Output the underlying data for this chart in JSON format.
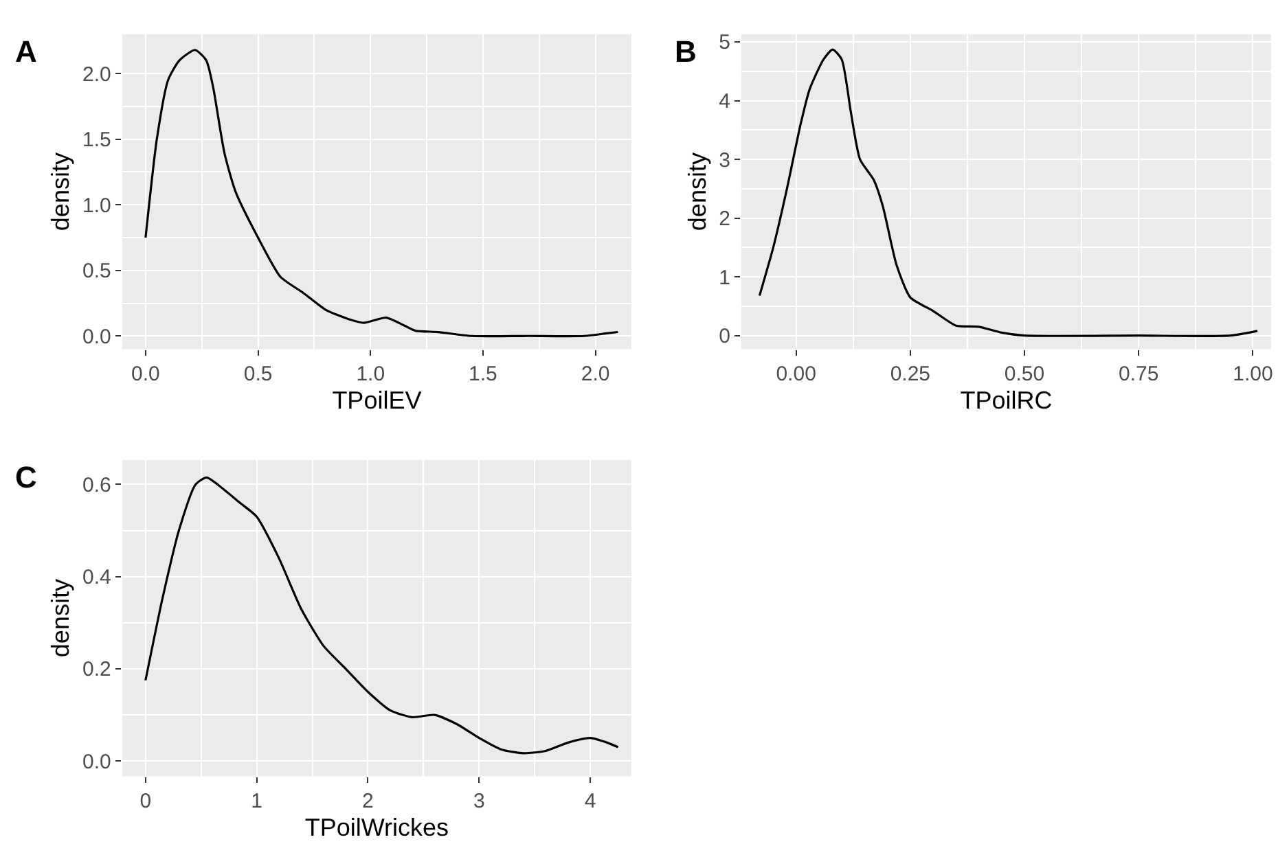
{
  "chart_data": [
    {
      "type": "line",
      "title": "A",
      "xlabel": "TPoilEV",
      "ylabel": "density",
      "xlim": [
        -0.104,
        2.16
      ],
      "ylim": [
        -0.1,
        2.3
      ],
      "xticks": [
        {
          "value": 0,
          "label": "0.0"
        },
        0.5,
        {
          "value": 1,
          "label": "1.0"
        },
        1.5,
        {
          "value": 2,
          "label": "2.0"
        }
      ],
      "yticks": [
        {
          "value": 0,
          "label": "0.0"
        },
        0.5,
        {
          "value": 1,
          "label": "1.0"
        },
        1.5,
        {
          "value": 2,
          "label": "2.0"
        }
      ],
      "grid": true,
      "marker": "none",
      "line_style": "solid",
      "x": [
        0,
        0.05,
        0.1,
        0.15,
        0.22,
        0.27,
        0.3,
        0.35,
        0.4,
        0.5,
        0.6,
        0.7,
        0.8,
        0.9,
        0.97,
        1.07,
        1.15,
        1.2,
        1.3,
        1.45,
        1.7,
        1.95,
        2.05,
        2.1
      ],
      "series": [
        {
          "color": "#000000",
          "values": [
            0.75,
            1.5,
            1.95,
            2.1,
            2.18,
            2.1,
            1.9,
            1.4,
            1.1,
            0.75,
            0.45,
            0.33,
            0.2,
            0.13,
            0.1,
            0.14,
            0.08,
            0.04,
            0.03,
            0.0,
            0.0,
            0.0,
            0.02,
            0.03
          ]
        }
      ]
    },
    {
      "type": "line",
      "title": "B",
      "xlabel": "TPoilRC",
      "ylabel": "density",
      "xlim": [
        -0.12,
        1.04
      ],
      "ylim": [
        -0.23,
        5.13
      ],
      "xticks": [
        {
          "value": 0,
          "label": "0.00"
        },
        0.25,
        {
          "value": 0.5,
          "label": "0.50"
        },
        0.75,
        {
          "value": 1,
          "label": "1.00"
        }
      ],
      "yticks": [
        0,
        1,
        2,
        3,
        4,
        5
      ],
      "grid": true,
      "marker": "none",
      "line_style": "solid",
      "x": [
        -0.08,
        -0.05,
        -0.02,
        0.01,
        0.03,
        0.06,
        0.08,
        0.1,
        0.12,
        0.14,
        0.17,
        0.19,
        0.22,
        0.25,
        0.3,
        0.35,
        0.4,
        0.45,
        0.5,
        0.75,
        0.95,
        1.01
      ],
      "series": [
        {
          "color": "#000000",
          "values": [
            0.68,
            1.5,
            2.5,
            3.6,
            4.2,
            4.7,
            4.87,
            4.7,
            3.8,
            3.0,
            2.65,
            2.2,
            1.2,
            0.65,
            0.42,
            0.17,
            0.15,
            0.05,
            0,
            0,
            0,
            0.08
          ]
        }
      ]
    },
    {
      "type": "line",
      "title": "C",
      "xlabel": "TPoilWrickes",
      "ylabel": "density",
      "xlim": [
        -0.21,
        4.37
      ],
      "ylim": [
        -0.033,
        0.653
      ],
      "xticks": [
        0,
        1,
        2,
        3,
        4
      ],
      "yticks": [
        {
          "value": 0,
          "label": "0.0"
        },
        0.2,
        0.4,
        0.6
      ],
      "grid": true,
      "marker": "none",
      "line_style": "solid",
      "x": [
        0,
        0.15,
        0.3,
        0.45,
        0.55,
        0.7,
        0.85,
        1.0,
        1.2,
        1.4,
        1.6,
        1.8,
        2.0,
        2.2,
        2.4,
        2.6,
        2.8,
        3.0,
        3.2,
        3.4,
        3.6,
        3.8,
        4.0,
        4.15,
        4.25
      ],
      "series": [
        {
          "color": "#000000",
          "values": [
            0.175,
            0.35,
            0.5,
            0.6,
            0.615,
            0.59,
            0.56,
            0.53,
            0.44,
            0.33,
            0.25,
            0.2,
            0.15,
            0.11,
            0.095,
            0.1,
            0.08,
            0.05,
            0.025,
            0.017,
            0.022,
            0.04,
            0.05,
            0.04,
            0.03
          ]
        }
      ]
    }
  ]
}
